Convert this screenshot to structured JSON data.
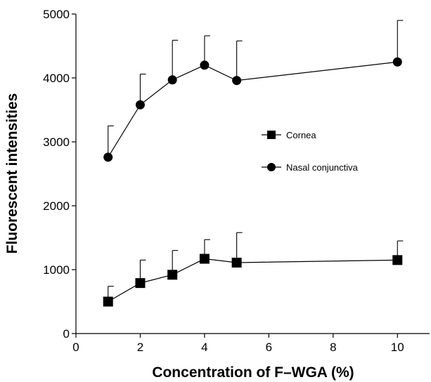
{
  "chart_data": {
    "type": "line",
    "xlabel": "Concentration of F–WGA (%)",
    "ylabel": "Fluorescent intensities",
    "xlim": [
      0,
      11
    ],
    "ylim": [
      0,
      5000
    ],
    "x_ticks": [
      "0",
      "2",
      "4",
      "6",
      "8",
      "10"
    ],
    "y_ticks": [
      "0",
      "1000",
      "2000",
      "3000",
      "4000",
      "5000"
    ],
    "legend_position": "right-middle",
    "grid": false,
    "series": [
      {
        "name": "Cornea",
        "marker": "square",
        "x": [
          1,
          2,
          3,
          4,
          5,
          10
        ],
        "y": [
          500,
          790,
          920,
          1170,
          1110,
          1150
        ],
        "error_upper": [
          240,
          360,
          380,
          300,
          470,
          300
        ]
      },
      {
        "name": "Nasal conjunctiva",
        "marker": "circle",
        "x": [
          1,
          2,
          3,
          4,
          5,
          10
        ],
        "y": [
          2760,
          3580,
          3970,
          4200,
          3960,
          4250
        ],
        "error_upper": [
          490,
          480,
          620,
          460,
          620,
          650
        ]
      }
    ]
  }
}
